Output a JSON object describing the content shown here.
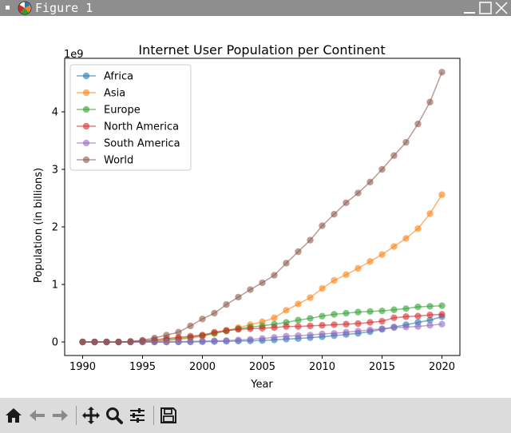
{
  "window": {
    "title": "Figure 1"
  },
  "toolbar": {
    "tools": [
      "home-icon",
      "back-icon",
      "forward-icon",
      "pan-icon",
      "zoom-icon",
      "configure-subplots-icon",
      "save-icon"
    ]
  },
  "chart_data": {
    "type": "line",
    "title": "Internet User Population per Continent",
    "xlabel": "Year",
    "ylabel": "Population (in billions)",
    "offset_text": "1e9",
    "x": [
      1990,
      1991,
      1992,
      1993,
      1994,
      1995,
      1996,
      1997,
      1998,
      1999,
      2000,
      2001,
      2002,
      2003,
      2004,
      2005,
      2006,
      2007,
      2008,
      2009,
      2010,
      2011,
      2012,
      2013,
      2014,
      2015,
      2016,
      2017,
      2018,
      2019,
      2020
    ],
    "xlim": [
      1988.5,
      2021.5
    ],
    "ylim": [
      -0.235,
      4.93
    ],
    "xticks": [
      1990,
      1995,
      2000,
      2005,
      2010,
      2015,
      2020
    ],
    "xtick_labels": [
      "1990",
      "1995",
      "2000",
      "2005",
      "2010",
      "2015",
      "2020"
    ],
    "yticks": [
      0,
      1,
      2,
      3,
      4
    ],
    "ytick_labels": [
      "0",
      "1",
      "2",
      "3",
      "4"
    ],
    "grid": false,
    "legend_position": "upper-left",
    "series": [
      {
        "name": "Africa",
        "color": "#1f77b4",
        "values": [
          0,
          0,
          0,
          0,
          0,
          0,
          0,
          0,
          0,
          0.001,
          0.005,
          0.008,
          0.012,
          0.016,
          0.02,
          0.025,
          0.035,
          0.05,
          0.06,
          0.075,
          0.09,
          0.11,
          0.13,
          0.15,
          0.18,
          0.22,
          0.26,
          0.3,
          0.34,
          0.38,
          0.44
        ]
      },
      {
        "name": "Asia",
        "color": "#ff7f0e",
        "values": [
          0,
          0,
          0,
          0,
          0,
          0.005,
          0.01,
          0.02,
          0.04,
          0.07,
          0.1,
          0.15,
          0.2,
          0.25,
          0.3,
          0.35,
          0.42,
          0.55,
          0.66,
          0.77,
          0.93,
          1.07,
          1.17,
          1.28,
          1.4,
          1.52,
          1.66,
          1.8,
          1.97,
          2.23,
          2.56
        ]
      },
      {
        "name": "Europe",
        "color": "#2ca02c",
        "values": [
          0,
          0,
          0,
          0,
          0,
          0.01,
          0.02,
          0.04,
          0.06,
          0.08,
          0.11,
          0.15,
          0.19,
          0.23,
          0.26,
          0.28,
          0.31,
          0.34,
          0.38,
          0.41,
          0.45,
          0.48,
          0.5,
          0.52,
          0.53,
          0.54,
          0.56,
          0.58,
          0.61,
          0.62,
          0.63
        ]
      },
      {
        "name": "North America",
        "color": "#d62728",
        "values": [
          0,
          0,
          0,
          0,
          0.005,
          0.02,
          0.04,
          0.06,
          0.08,
          0.1,
          0.12,
          0.17,
          0.2,
          0.22,
          0.23,
          0.24,
          0.25,
          0.27,
          0.27,
          0.28,
          0.29,
          0.3,
          0.31,
          0.32,
          0.34,
          0.36,
          0.42,
          0.44,
          0.45,
          0.47,
          0.48
        ]
      },
      {
        "name": "South America",
        "color": "#9467bd",
        "values": [
          0,
          0,
          0,
          0,
          0,
          0,
          0,
          0,
          0.005,
          0.01,
          0.015,
          0.02,
          0.025,
          0.035,
          0.045,
          0.06,
          0.08,
          0.1,
          0.11,
          0.12,
          0.14,
          0.15,
          0.17,
          0.19,
          0.21,
          0.23,
          0.25,
          0.26,
          0.27,
          0.29,
          0.31
        ]
      },
      {
        "name": "World",
        "color": "#8c564b",
        "values": [
          0,
          0,
          0,
          0,
          0.01,
          0.03,
          0.07,
          0.12,
          0.17,
          0.28,
          0.4,
          0.5,
          0.65,
          0.78,
          0.91,
          1.03,
          1.16,
          1.37,
          1.57,
          1.77,
          2.02,
          2.22,
          2.42,
          2.59,
          2.78,
          3.0,
          3.24,
          3.47,
          3.79,
          4.17,
          4.69
        ]
      }
    ]
  }
}
